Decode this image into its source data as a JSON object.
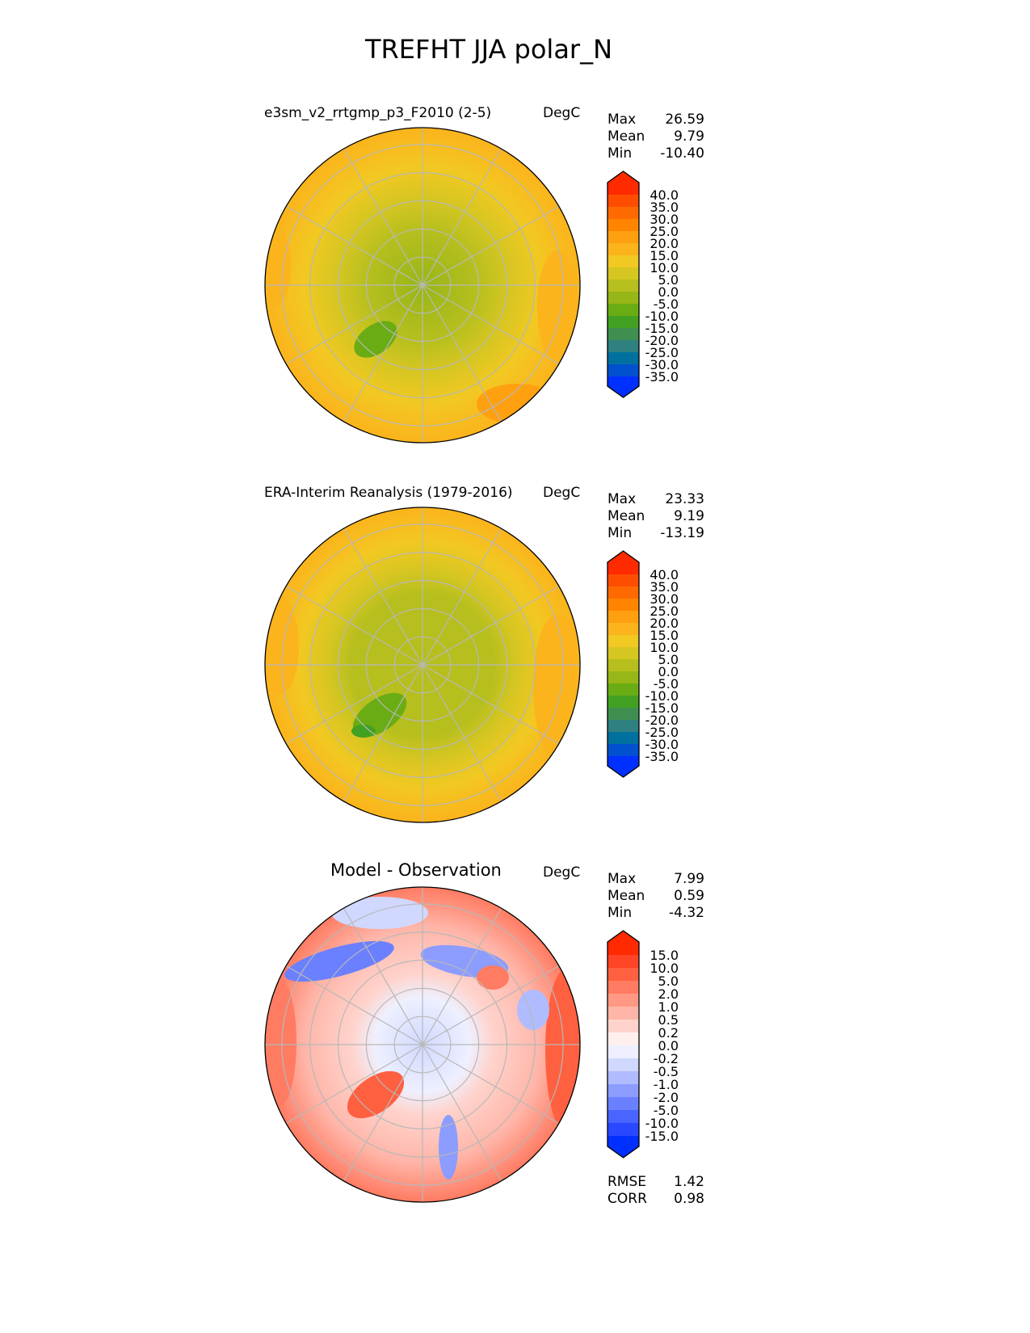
{
  "title": "TREFHT JJA polar_N",
  "panels": [
    {
      "title": "e3sm_v2_rrtgmp_p3_F2010 (2-5)",
      "units": "DegC",
      "stats": {
        "max_label": "Max",
        "max": "26.59",
        "mean_label": "Mean",
        "mean": "9.79",
        "min_label": "Min",
        "min": "-10.40"
      },
      "colorbar": {
        "labels": [
          "40.0",
          "35.0",
          "30.0",
          "25.0",
          "20.0",
          "15.0",
          "10.0",
          "5.0",
          "0.0",
          "-5.0",
          "-10.0",
          "-15.0",
          "-20.0",
          "-25.0",
          "-30.0",
          "-35.0"
        ],
        "colors": [
          "#ff2a00",
          "#ff4d00",
          "#ff6a00",
          "#ff8500",
          "#ffa010",
          "#fbb41c",
          "#f2c822",
          "#d6c622",
          "#b6bf1e",
          "#97b617",
          "#6aac14",
          "#42a022",
          "#3f9050",
          "#2f8080",
          "#00709e",
          "#0050d0",
          "#0030ff"
        ]
      }
    },
    {
      "title": "ERA-Interim Reanalysis (1979-2016)",
      "units": "DegC",
      "stats": {
        "max_label": "Max",
        "max": "23.33",
        "mean_label": "Mean",
        "mean": "9.19",
        "min_label": "Min",
        "min": "-13.19"
      },
      "colorbar": {
        "labels": [
          "40.0",
          "35.0",
          "30.0",
          "25.0",
          "20.0",
          "15.0",
          "10.0",
          "5.0",
          "0.0",
          "-5.0",
          "-10.0",
          "-15.0",
          "-20.0",
          "-25.0",
          "-30.0",
          "-35.0"
        ],
        "colors": [
          "#ff2a00",
          "#ff4d00",
          "#ff6a00",
          "#ff8500",
          "#ffa010",
          "#fbb41c",
          "#f2c822",
          "#d6c622",
          "#b6bf1e",
          "#97b617",
          "#6aac14",
          "#42a022",
          "#3f9050",
          "#2f8080",
          "#00709e",
          "#0050d0",
          "#0030ff"
        ]
      }
    },
    {
      "title": "Model - Observation",
      "units": "DegC",
      "stats": {
        "max_label": "Max",
        "max": "7.99",
        "mean_label": "Mean",
        "mean": "0.59",
        "min_label": "Min",
        "min": "-4.32"
      },
      "colorbar": {
        "labels": [
          "15.0",
          "10.0",
          "5.0",
          "2.0",
          "1.0",
          "0.5",
          "0.2",
          "0.0",
          "-0.2",
          "-0.5",
          "-1.0",
          "-2.0",
          "-5.0",
          "-10.0",
          "-15.0"
        ],
        "colors": [
          "#ff2a00",
          "#ff4525",
          "#ff6040",
          "#ff7b62",
          "#ff9985",
          "#ffb5a8",
          "#ffd3cc",
          "#fff0ee",
          "#eef0ff",
          "#d0d8ff",
          "#b0bcff",
          "#8c9cff",
          "#6a80ff",
          "#4a64ff",
          "#2a48ff",
          "#0030ff"
        ]
      },
      "metrics": {
        "rmse_label": "RMSE",
        "rmse": "1.42",
        "corr_label": "CORR",
        "corr": "0.98"
      }
    }
  ]
}
